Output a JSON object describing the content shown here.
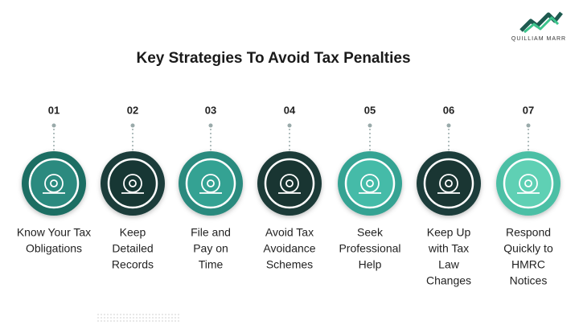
{
  "logo": {
    "name": "QUILLIAM MARR"
  },
  "title": "Key Strategies To Avoid Tax Penalties",
  "steps": [
    {
      "number": "01",
      "label_lines": [
        "Know Your Tax",
        "Obligations"
      ]
    },
    {
      "number": "02",
      "label_lines": [
        "Keep",
        "Detailed",
        "Records"
      ]
    },
    {
      "number": "03",
      "label_lines": [
        "File and",
        "Pay on",
        "Time"
      ]
    },
    {
      "number": "04",
      "label_lines": [
        "Avoid Tax",
        "Avoidance",
        "Schemes"
      ]
    },
    {
      "number": "05",
      "label_lines": [
        "Seek",
        "Professional",
        "Help"
      ]
    },
    {
      "number": "06",
      "label_lines": [
        "Keep Up",
        "with Tax",
        "Law",
        "Changes"
      ]
    },
    {
      "number": "07",
      "label_lines": [
        "Respond",
        "Quickly to",
        "HMRC",
        "Notices"
      ]
    }
  ]
}
